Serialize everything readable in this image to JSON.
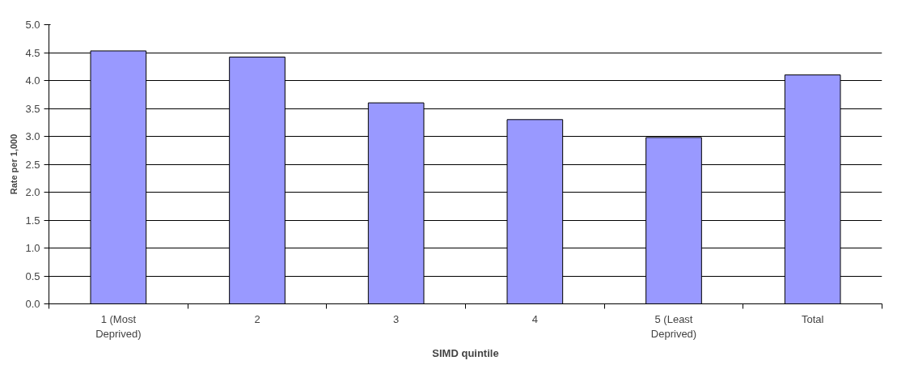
{
  "chart_data": {
    "type": "bar",
    "xlabel": "SIMD quintile",
    "ylabel": "Rate per 1,000",
    "categories": [
      "1 (Most\nDeprived)",
      "2",
      "3",
      "4",
      "5 (Least\nDeprived)",
      "Total"
    ],
    "values": [
      4.53,
      4.42,
      3.6,
      3.3,
      2.98,
      4.1
    ],
    "color": "#9999ff",
    "ylim": [
      0,
      5
    ],
    "yticks": [
      {
        "value": 0,
        "label": "0.0"
      },
      {
        "value": 0.5,
        "label": "0.5"
      },
      {
        "value": 1,
        "label": "1.0"
      },
      {
        "value": 1.5,
        "label": "1.5"
      },
      {
        "value": 2,
        "label": "2.0"
      },
      {
        "value": 2.5,
        "label": "2.5"
      },
      {
        "value": 3,
        "label": "3.0"
      },
      {
        "value": 3.5,
        "label": "3.5"
      },
      {
        "value": 4,
        "label": "4.0"
      },
      {
        "value": 4.5,
        "label": "4.5"
      },
      {
        "value": 5,
        "label": "5.0"
      }
    ],
    "grid": "y"
  }
}
